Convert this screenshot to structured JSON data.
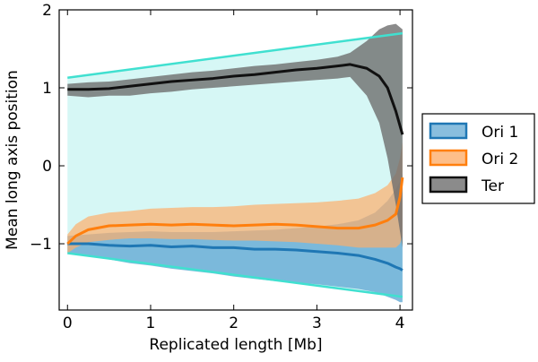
{
  "chart_data": {
    "type": "line",
    "xlabel": "Replicated length [Mb]",
    "ylabel": "Mean long axis position",
    "xlim": [
      -0.1,
      4.15
    ],
    "ylim": [
      -1.85,
      2.0
    ],
    "xticks": [
      0,
      1,
      2,
      3,
      4
    ],
    "yticks": [
      -1,
      0,
      1,
      2
    ],
    "xtick_labels": [
      "0",
      "1",
      "2",
      "3",
      "4"
    ],
    "ytick_labels": [
      "−1",
      "0",
      "1",
      "2"
    ],
    "legend_position": "right-outside",
    "cell_boundary": {
      "color": "#40e0d0",
      "fill": "#d6f7f5",
      "x": [
        0,
        4.03
      ],
      "upper": [
        1.13,
        1.7
      ],
      "lower": [
        -1.12,
        -1.68
      ]
    },
    "series": [
      {
        "name": "Ori 1",
        "color": "#1f77b4",
        "band_color": "#6baed6",
        "x": [
          0,
          0.25,
          0.5,
          0.75,
          1.0,
          1.25,
          1.5,
          1.75,
          2.0,
          2.25,
          2.5,
          2.75,
          3.0,
          3.25,
          3.5,
          3.7,
          3.85,
          3.95,
          4.0,
          4.03
        ],
        "mean": [
          -1.0,
          -1.0,
          -1.02,
          -1.03,
          -1.02,
          -1.04,
          -1.03,
          -1.05,
          -1.05,
          -1.07,
          -1.07,
          -1.08,
          -1.1,
          -1.12,
          -1.15,
          -1.2,
          -1.25,
          -1.3,
          -1.32,
          -1.34
        ],
        "lower": [
          -1.12,
          -1.15,
          -1.2,
          -1.25,
          -1.28,
          -1.32,
          -1.35,
          -1.38,
          -1.42,
          -1.45,
          -1.48,
          -1.5,
          -1.52,
          -1.55,
          -1.58,
          -1.62,
          -1.68,
          -1.72,
          -1.75,
          -1.75
        ],
        "upper": [
          -0.9,
          -0.88,
          -0.86,
          -0.85,
          -0.84,
          -0.85,
          -0.85,
          -0.85,
          -0.84,
          -0.83,
          -0.82,
          -0.8,
          -0.78,
          -0.75,
          -0.7,
          -0.6,
          -0.45,
          -0.3,
          -0.2,
          -0.1
        ]
      },
      {
        "name": "Ori 2",
        "color": "#ff7f0e",
        "band_color": "#fdae6b",
        "x": [
          0,
          0.1,
          0.25,
          0.5,
          0.75,
          1.0,
          1.25,
          1.5,
          1.75,
          2.0,
          2.25,
          2.5,
          2.75,
          3.0,
          3.25,
          3.5,
          3.7,
          3.85,
          3.95,
          4.0,
          4.03
        ],
        "mean": [
          -1.0,
          -0.9,
          -0.82,
          -0.77,
          -0.76,
          -0.75,
          -0.76,
          -0.75,
          -0.76,
          -0.77,
          -0.76,
          -0.75,
          -0.76,
          -0.78,
          -0.8,
          -0.8,
          -0.76,
          -0.7,
          -0.62,
          -0.4,
          -0.15
        ],
        "lower": [
          -1.12,
          -1.05,
          -0.98,
          -0.95,
          -0.93,
          -0.93,
          -0.94,
          -0.94,
          -0.95,
          -0.96,
          -0.96,
          -0.97,
          -0.98,
          -1.0,
          -1.02,
          -1.05,
          -1.05,
          -1.05,
          -1.05,
          -1.0,
          -0.9
        ],
        "upper": [
          -0.88,
          -0.75,
          -0.65,
          -0.6,
          -0.58,
          -0.55,
          -0.54,
          -0.53,
          -0.53,
          -0.52,
          -0.5,
          -0.49,
          -0.48,
          -0.47,
          -0.45,
          -0.42,
          -0.35,
          -0.25,
          -0.1,
          0.1,
          0.3
        ]
      },
      {
        "name": "Ter",
        "color": "#111111",
        "band_color": "#6e6e6e",
        "x": [
          0,
          0.25,
          0.5,
          0.75,
          1.0,
          1.25,
          1.5,
          1.75,
          2.0,
          2.25,
          2.5,
          2.75,
          3.0,
          3.25,
          3.4,
          3.6,
          3.75,
          3.85,
          3.95,
          4.03
        ],
        "mean": [
          0.98,
          0.98,
          0.99,
          1.02,
          1.05,
          1.08,
          1.1,
          1.12,
          1.15,
          1.17,
          1.2,
          1.23,
          1.25,
          1.28,
          1.3,
          1.25,
          1.15,
          1.0,
          0.7,
          0.4
        ],
        "lower": [
          0.9,
          0.88,
          0.9,
          0.9,
          0.93,
          0.95,
          0.98,
          1.0,
          1.02,
          1.04,
          1.06,
          1.08,
          1.1,
          1.12,
          1.14,
          0.9,
          0.55,
          0.1,
          -0.5,
          -1.05
        ],
        "upper": [
          1.05,
          1.07,
          1.08,
          1.11,
          1.14,
          1.17,
          1.2,
          1.22,
          1.25,
          1.28,
          1.3,
          1.33,
          1.36,
          1.4,
          1.45,
          1.6,
          1.75,
          1.8,
          1.82,
          1.75
        ]
      }
    ]
  }
}
